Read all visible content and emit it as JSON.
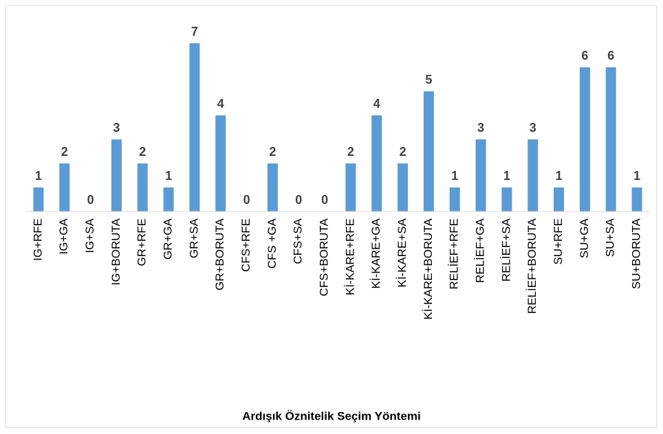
{
  "chart_data": {
    "type": "bar",
    "x_label": "Ardışık Öznitelik Seçim Yöntemi",
    "categories": [
      "IG+RFE",
      "IG+GA",
      "IG+SA",
      "IG+BORUTA",
      "GR+RFE",
      "GR+GA",
      "GR+SA",
      "GR+BORUTA",
      "CFS+RFE",
      "CFS +GA",
      "CFS+SA",
      "CFS+BORUTA",
      "Kİ-KARE+RFE",
      "Kİ-KARE+GA",
      "Kİ-KARE+SA",
      "Kİ-KARE+BORUTA",
      "RELİEF+RFE",
      "RELİEF+GA",
      "RELİEF+SA",
      "RELİEF+BORUTA",
      "SU+RFE",
      "SU+GA",
      "SU+SA",
      "SU+BORUTA"
    ],
    "values": [
      1,
      2,
      0,
      3,
      2,
      1,
      7,
      4,
      0,
      2,
      0,
      0,
      2,
      4,
      2,
      5,
      1,
      3,
      1,
      3,
      1,
      6,
      6,
      1
    ],
    "color": "#5b9bd5",
    "ylim": [
      0,
      7
    ]
  }
}
